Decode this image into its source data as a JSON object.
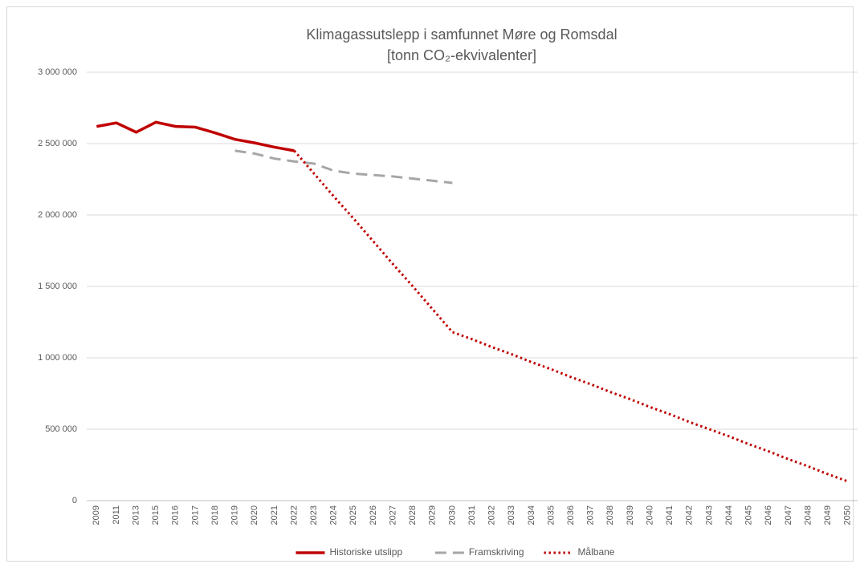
{
  "chart_data": {
    "type": "line",
    "title": "Klimagassutslepp i samfunnet Møre og Romsdal",
    "subtitle": "[tonn CO₂-ekvivalenter]",
    "categories": [
      "2009",
      "2011",
      "2013",
      "2015",
      "2016",
      "2017",
      "2018",
      "2019",
      "2020",
      "2021",
      "2022",
      "2023",
      "2024",
      "2025",
      "2026",
      "2027",
      "2028",
      "2029",
      "2030",
      "2031",
      "2032",
      "2033",
      "2034",
      "2035",
      "2036",
      "2037",
      "2038",
      "2039",
      "2040",
      "2041",
      "2042",
      "2043",
      "2044",
      "2045",
      "2046",
      "2047",
      "2048",
      "2049",
      "2050"
    ],
    "series": [
      {
        "name": "Historiske utslipp",
        "color": "#c00000",
        "style": "solid",
        "values": [
          2620000,
          2645000,
          2580000,
          2650000,
          2620000,
          2615000,
          2575000,
          2530000,
          2505000,
          2475000,
          2450000,
          null,
          null,
          null,
          null,
          null,
          null,
          null,
          null,
          null,
          null,
          null,
          null,
          null,
          null,
          null,
          null,
          null,
          null,
          null,
          null,
          null,
          null,
          null,
          null,
          null,
          null,
          null,
          null
        ]
      },
      {
        "name": "Framskriving",
        "color": "#a6a6a6",
        "style": "dashed",
        "values": [
          null,
          null,
          null,
          null,
          null,
          null,
          null,
          2450000,
          2430000,
          2395000,
          2375000,
          2360000,
          2310000,
          2290000,
          2280000,
          2270000,
          2255000,
          2240000,
          2225000,
          null,
          null,
          null,
          null,
          null,
          null,
          null,
          null,
          null,
          null,
          null,
          null,
          null,
          null,
          null,
          null,
          null,
          null,
          null,
          null
        ]
      },
      {
        "name": "Målbane",
        "color": "#c00000",
        "style": "dotted",
        "values": [
          null,
          null,
          null,
          null,
          null,
          null,
          null,
          null,
          null,
          null,
          2450000,
          2290000,
          2130000,
          1975000,
          1815000,
          1655000,
          1500000,
          1340000,
          1180000,
          1130000,
          1075000,
          1025000,
          970000,
          920000,
          865000,
          815000,
          760000,
          710000,
          655000,
          605000,
          550000,
          500000,
          450000,
          395000,
          345000,
          290000,
          240000,
          185000,
          135000
        ]
      }
    ],
    "ylim": [
      0,
      3000000
    ],
    "yticks": [
      0,
      {
        "value": 500000,
        "label": "500 000"
      },
      {
        "value": 1000000,
        "label": "1 000 000"
      },
      {
        "value": 1500000,
        "label": "1 500 000"
      },
      {
        "value": 2000000,
        "label": "2 000 000"
      },
      {
        "value": 2500000,
        "label": "2 500 000"
      },
      {
        "value": 3000000,
        "label": "3 000 000"
      }
    ],
    "grid": true,
    "legend": "bottom"
  }
}
